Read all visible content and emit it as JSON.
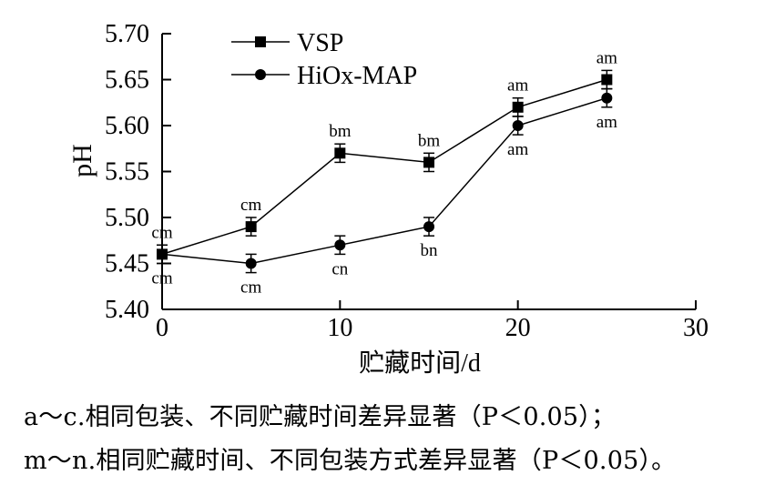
{
  "chart_data": {
    "type": "line",
    "title": "",
    "xlabel": "贮藏时间/d",
    "ylabel": "pH",
    "xlim": [
      0,
      30
    ],
    "ylim": [
      5.4,
      5.7
    ],
    "x_ticks": [
      0,
      10,
      20,
      30
    ],
    "x_tick_labels": [
      "0",
      "10",
      "20",
      "30"
    ],
    "y_ticks": [
      5.4,
      5.45,
      5.5,
      5.55,
      5.6,
      5.65,
      5.7
    ],
    "y_tick_labels": [
      "5.40",
      "5.45",
      "5.50",
      "5.55",
      "5.60",
      "5.65",
      "5.70"
    ],
    "grid": false,
    "legend_position": "top-left",
    "series": [
      {
        "name": "VSP",
        "marker": "square",
        "x": [
          0,
          5,
          10,
          15,
          20,
          25
        ],
        "y": [
          5.46,
          5.49,
          5.57,
          5.56,
          5.62,
          5.65
        ],
        "error": [
          0.01,
          0.01,
          0.01,
          0.01,
          0.01,
          0.01
        ],
        "labels": [
          "cm",
          "cm",
          "bm",
          "bm",
          "am",
          "am"
        ],
        "label_side": [
          "above",
          "above",
          "above",
          "above",
          "above",
          "above"
        ]
      },
      {
        "name": "HiOx-MAP",
        "marker": "circle",
        "x": [
          0,
          5,
          10,
          15,
          20,
          25
        ],
        "y": [
          5.46,
          5.45,
          5.47,
          5.49,
          5.6,
          5.63
        ],
        "error": [
          0.01,
          0.01,
          0.01,
          0.01,
          0.01,
          0.01
        ],
        "labels": [
          "cm",
          "cm",
          "cn",
          "bn",
          "am",
          "am"
        ],
        "label_side": [
          "below",
          "below",
          "below",
          "below",
          "below",
          "below"
        ]
      }
    ],
    "colors": {
      "line": "#000000",
      "marker": "#000000"
    }
  },
  "caption": {
    "line1": "a～c.相同包装、不同贮藏时间差异显著（P＜0.05）；",
    "line2": "m～n.相同贮藏时间、不同包装方式差异显著（P＜0.05）。"
  }
}
